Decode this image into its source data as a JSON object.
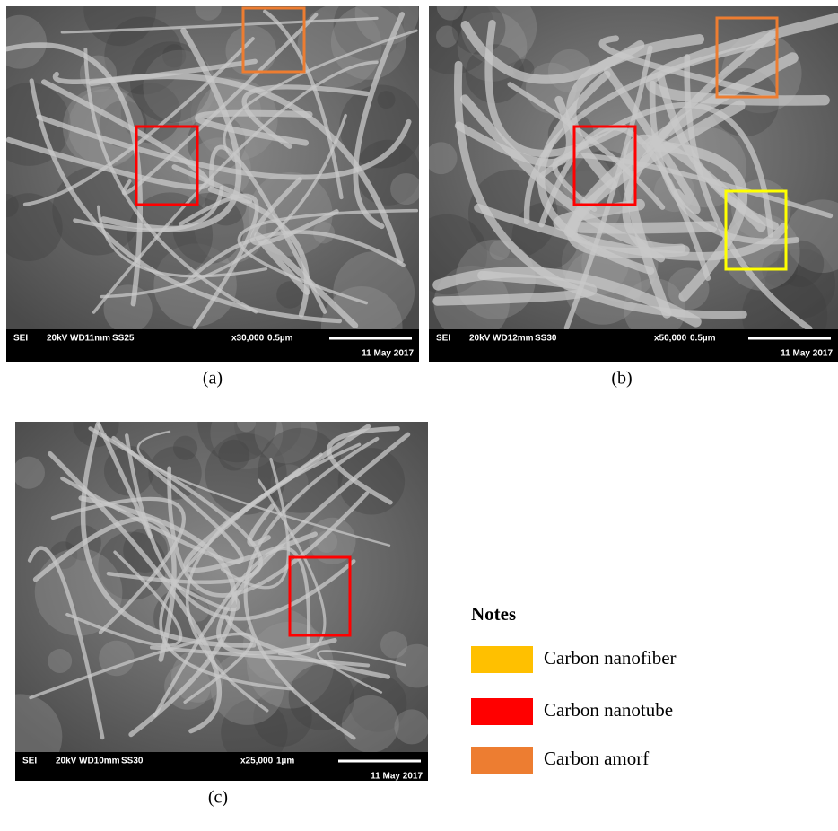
{
  "panels": [
    {
      "caption": "(a)",
      "info": {
        "mode": "SEI",
        "voltage": "20kV",
        "wd": "WD11mm",
        "ss": "SS25",
        "magnification": "x30,000",
        "scale": "0.5µm",
        "date": "11 May 2017"
      }
    },
    {
      "caption": "(b)",
      "info": {
        "mode": "SEI",
        "voltage": "20kV",
        "wd": "WD12mm",
        "ss": "SS30",
        "magnification": "x50,000",
        "scale": "0.5µm",
        "date": "11 May 2017"
      }
    },
    {
      "caption": "(c)",
      "info": {
        "mode": "SEI",
        "voltage": "20kV",
        "wd": "WD10mm",
        "ss": "SS30",
        "magnification": "x25,000",
        "scale": "1µm",
        "date": "11 May 2017"
      }
    }
  ],
  "notes": {
    "title": "Notes",
    "items": [
      {
        "label": "Carbon nanofiber",
        "color": "#ffc000"
      },
      {
        "label": "Carbon nanotube",
        "color": "#ff0000"
      },
      {
        "label": "Carbon amorf",
        "color": "#ed7d31"
      }
    ]
  }
}
